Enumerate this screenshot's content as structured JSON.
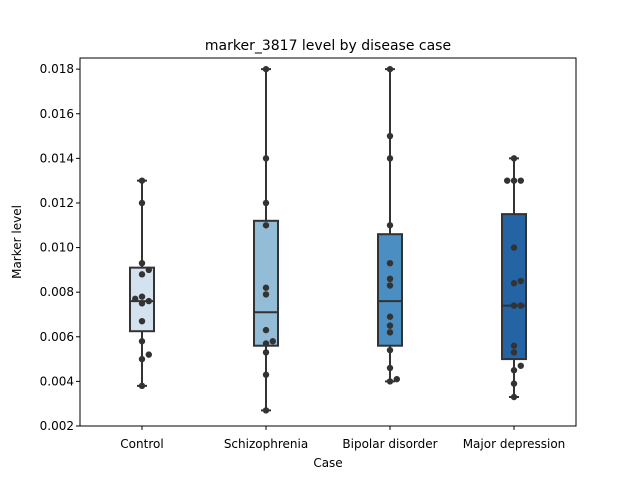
{
  "chart_data": {
    "type": "box",
    "title": "marker_3817 level by disease case",
    "xlabel": "Case",
    "ylabel": "Marker level",
    "ylim": [
      0.002,
      0.0185
    ],
    "yticks": [
      0.002,
      0.004,
      0.006,
      0.008,
      0.01,
      0.012,
      0.014,
      0.016,
      0.018
    ],
    "ytick_labels": [
      "0.002",
      "0.004",
      "0.006",
      "0.008",
      "0.010",
      "0.012",
      "0.014",
      "0.016",
      "0.018"
    ],
    "categories": [
      "Control",
      "Schizophrenia",
      "Bipolar disorder",
      "Major depression"
    ],
    "colors": {
      "Control": "#d4e1ef",
      "Schizophrenia": "#93bcd6",
      "Bipolar disorder": "#4a8ec2",
      "Major depression": "#2463a4",
      "box_edge": "#333333",
      "points": "#333333"
    },
    "boxes": [
      {
        "category": "Control",
        "whislo": 0.0038,
        "q1": 0.00625,
        "median": 0.0076,
        "q3": 0.0091,
        "whishi": 0.013
      },
      {
        "category": "Schizophrenia",
        "whislo": 0.0027,
        "q1": 0.0056,
        "median": 0.0071,
        "q3": 0.0112,
        "whishi": 0.018
      },
      {
        "category": "Bipolar disorder",
        "whislo": 0.004,
        "q1": 0.0056,
        "median": 0.0076,
        "q3": 0.0106,
        "whishi": 0.018
      },
      {
        "category": "Major depression",
        "whislo": 0.0033,
        "q1": 0.005,
        "median": 0.0074,
        "q3": 0.0115,
        "whishi": 0.014
      }
    ],
    "points": [
      {
        "category": "Control",
        "values": [
          0.013,
          0.012,
          0.0093,
          0.009,
          0.0088,
          0.0078,
          0.0077,
          0.0076,
          0.0075,
          0.0067,
          0.0058,
          0.0052,
          0.005,
          0.0038
        ]
      },
      {
        "category": "Schizophrenia",
        "values": [
          0.018,
          0.014,
          0.012,
          0.011,
          0.0082,
          0.0079,
          0.0063,
          0.0058,
          0.0057,
          0.0053,
          0.0043,
          0.0027
        ]
      },
      {
        "category": "Bipolar disorder",
        "values": [
          0.018,
          0.015,
          0.014,
          0.011,
          0.0093,
          0.0086,
          0.0083,
          0.0069,
          0.0065,
          0.0062,
          0.0054,
          0.0046,
          0.0041,
          0.004
        ]
      },
      {
        "category": "Major depression",
        "values": [
          0.014,
          0.013,
          0.013,
          0.013,
          0.01,
          0.0085,
          0.0084,
          0.0074,
          0.0074,
          0.0056,
          0.0053,
          0.0047,
          0.0045,
          0.0039,
          0.0033
        ]
      }
    ]
  }
}
